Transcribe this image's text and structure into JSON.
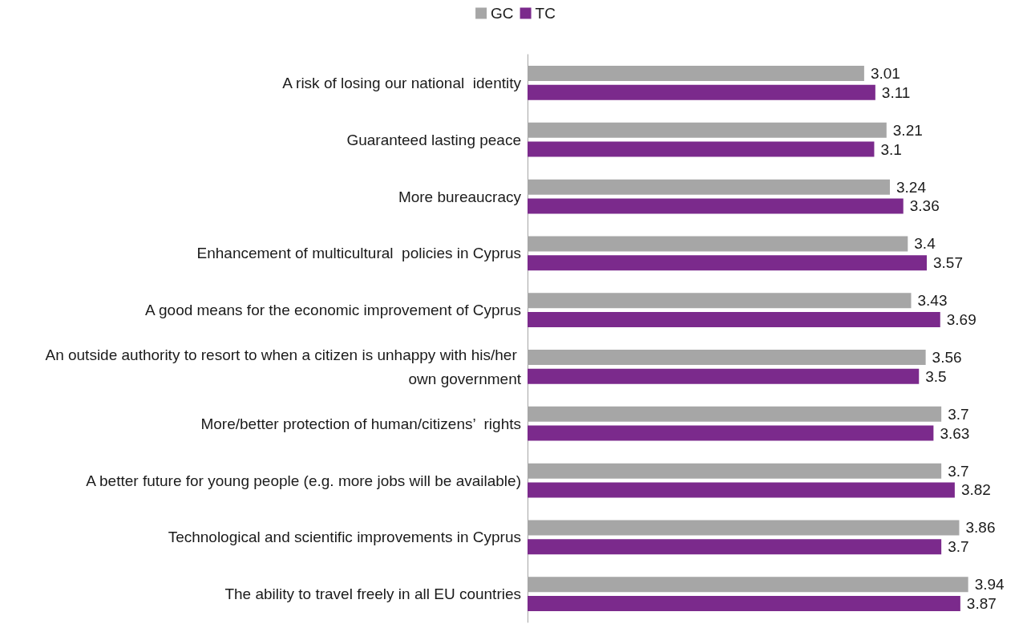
{
  "chart_data": {
    "type": "bar",
    "orientation": "horizontal",
    "categories": [
      "A risk of losing our national  identity",
      "Guaranteed lasting peace",
      "More bureaucracy",
      "Enhancement of multicultural  policies in Cyprus",
      "A good means for the economic improvement of Cyprus",
      "An outside authority to resort to when a citizen is unhappy with his/her own government",
      "More/better protection of human/citizens’  rights",
      "A better future for young people (e.g. more jobs will be available)",
      "Technological and scientific improvements in Cyprus",
      "The ability to travel freely in all EU countries"
    ],
    "series": [
      {
        "name": "GC",
        "color": "#a6a6a6",
        "values": [
          3.01,
          3.21,
          3.24,
          3.4,
          3.43,
          3.56,
          3.7,
          3.7,
          3.86,
          3.94
        ]
      },
      {
        "name": "TC",
        "color": "#7b2a8c",
        "values": [
          3.11,
          3.1,
          3.36,
          3.57,
          3.69,
          3.5,
          3.63,
          3.82,
          3.7,
          3.87
        ]
      }
    ],
    "tick_labels": "y",
    "data_labels": true,
    "legend": "top"
  }
}
